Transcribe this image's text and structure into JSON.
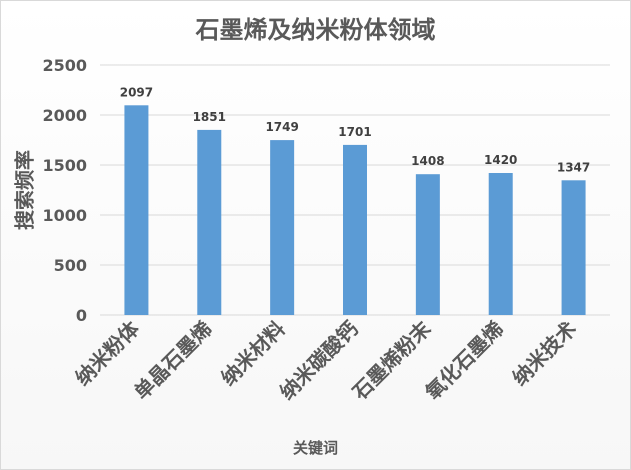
{
  "chart_data": {
    "type": "bar",
    "title": "石墨烯及纳米粉体领域",
    "xlabel": "关键词",
    "ylabel": "搜索频率",
    "categories": [
      "纳米粉体",
      "单晶石墨烯",
      "纳米材料",
      "纳米碳酸钙",
      "石墨烯粉末",
      "氧化石墨烯",
      "纳米技术"
    ],
    "values": [
      2097,
      1851,
      1749,
      1701,
      1408,
      1420,
      1347
    ],
    "yticks": [
      0,
      500,
      1000,
      1500,
      2000,
      2500
    ],
    "ylim": [
      0,
      2500
    ],
    "grid": true,
    "bar_color": "#5b9bd5",
    "gridline_color": "#d9d9d9",
    "text_color": "#595959"
  }
}
